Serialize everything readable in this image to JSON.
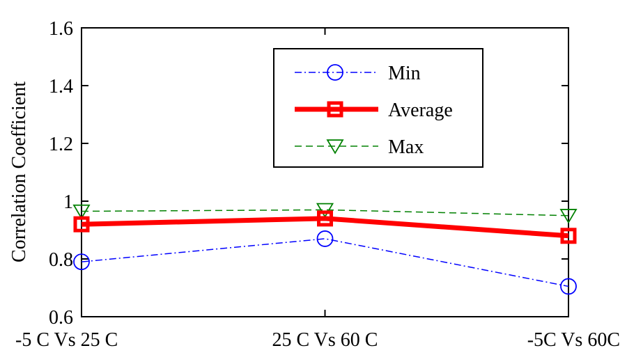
{
  "chart_data": {
    "type": "line",
    "categories": [
      "-5 C Vs 25 C",
      "25 C Vs 60 C",
      "-5C Vs 60C"
    ],
    "ylabel": "Correlation Coefficient",
    "xlabel": "",
    "ylim": [
      0.6,
      1.6
    ],
    "yticks": [
      "0.6",
      "0.8",
      "1",
      "1.2",
      "1.4",
      "1.6"
    ],
    "legend_position": "top-right",
    "grid": false,
    "series": [
      {
        "name": "Min",
        "values": [
          0.79,
          0.87,
          0.705
        ],
        "color": "#0000ff",
        "marker": "circle",
        "line": "dash-dot"
      },
      {
        "name": "Average",
        "values": [
          0.92,
          0.94,
          0.88
        ],
        "color": "#ff0000",
        "marker": "square",
        "line": "solid-thick"
      },
      {
        "name": "Max",
        "values": [
          0.965,
          0.97,
          0.95
        ],
        "color": "#008000",
        "marker": "triangle-down",
        "line": "dashed"
      }
    ]
  }
}
